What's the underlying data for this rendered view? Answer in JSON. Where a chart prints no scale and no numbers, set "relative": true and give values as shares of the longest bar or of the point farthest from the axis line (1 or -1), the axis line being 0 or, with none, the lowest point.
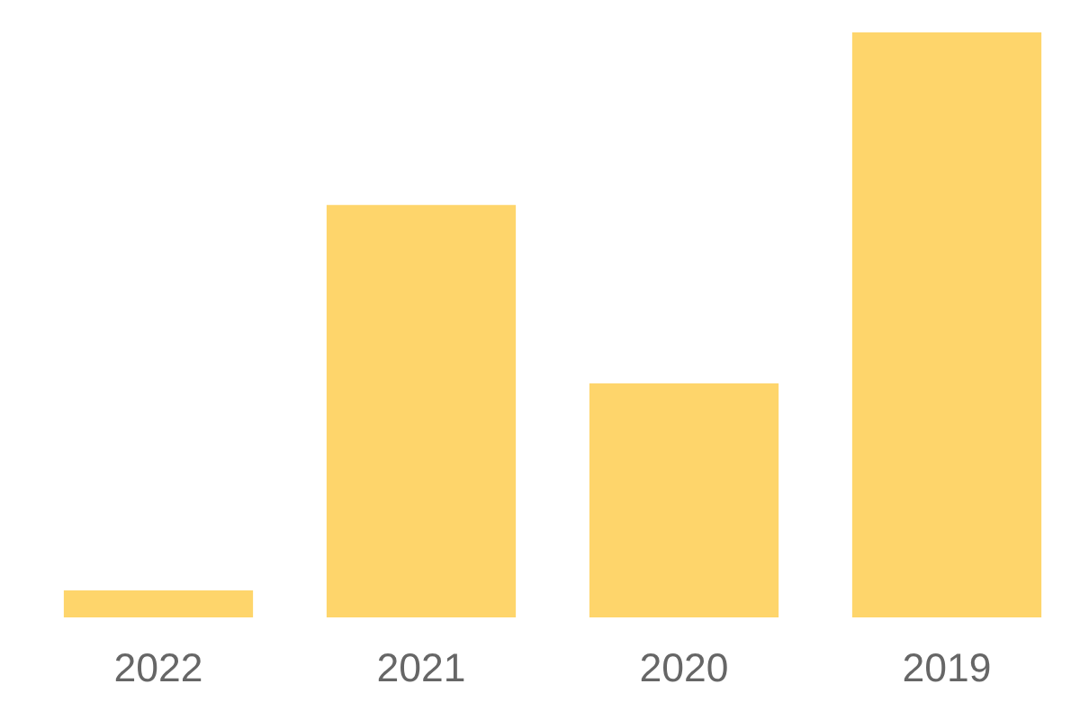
{
  "chart_data": {
    "type": "bar",
    "relative": true,
    "categories": [
      "2022",
      "2021",
      "2020",
      "2019"
    ],
    "values": [
      0.046,
      0.705,
      0.4,
      1
    ],
    "color": "#fed56b",
    "grid": false,
    "legend": false,
    "tick_labels": "x"
  }
}
